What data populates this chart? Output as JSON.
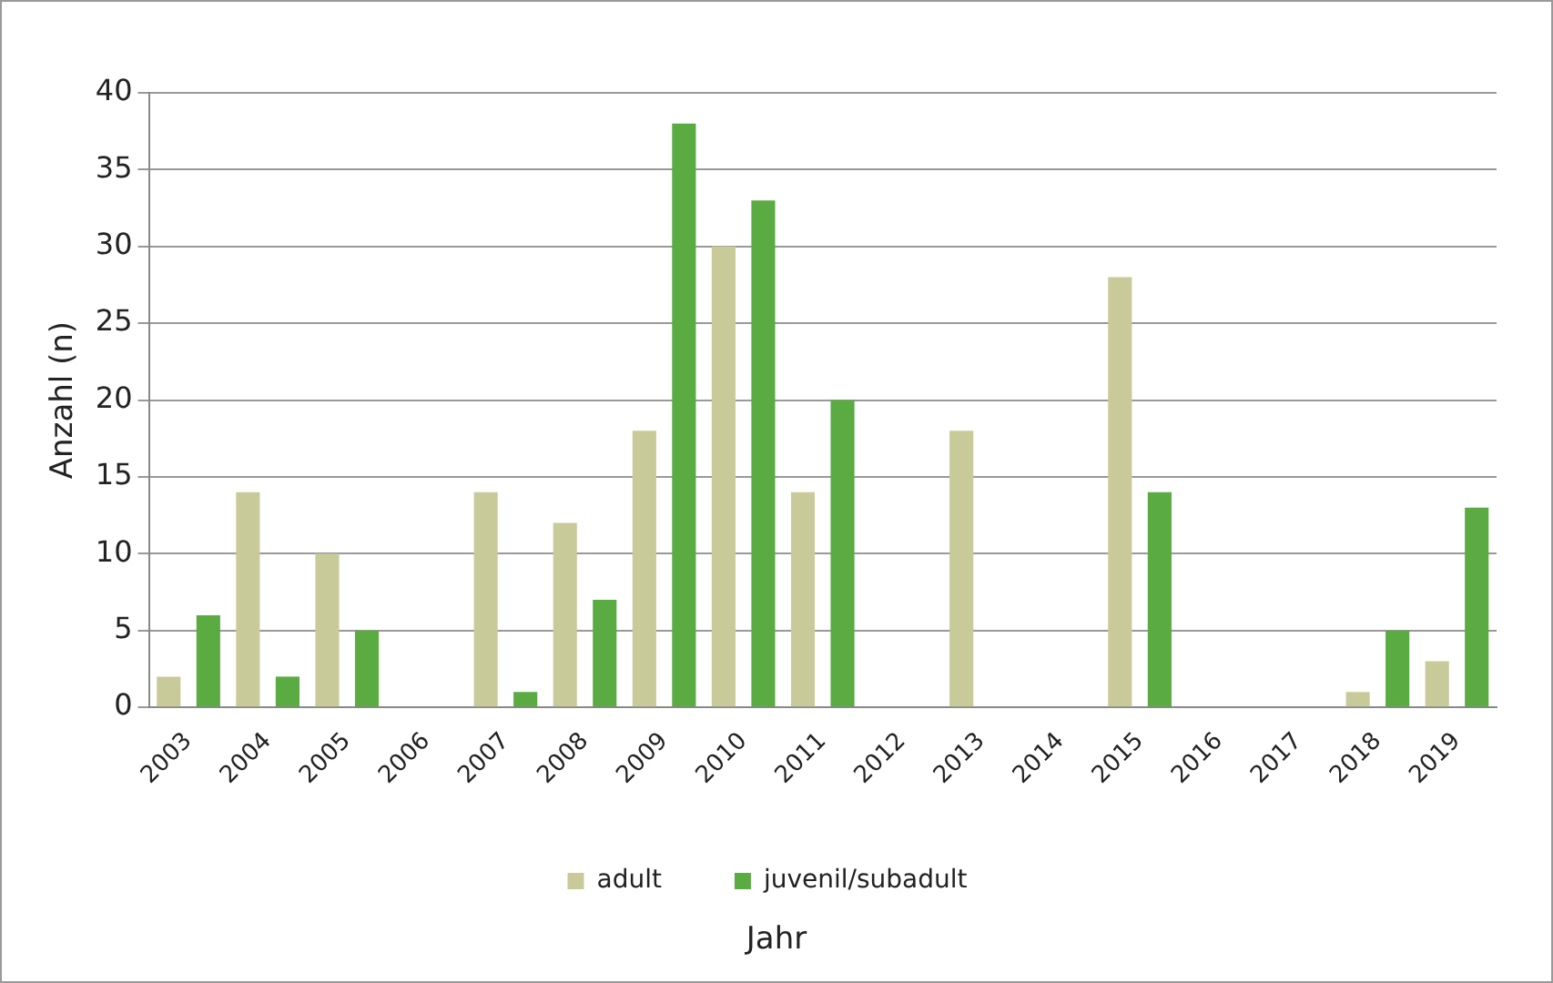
{
  "chart_data": {
    "type": "bar",
    "xlabel": "Jahr",
    "ylabel": "Anzahl (n)",
    "categories": [
      "2003",
      "2004",
      "2005",
      "2006",
      "2007",
      "2008",
      "2009",
      "2010",
      "2011",
      "2012",
      "2013",
      "2014",
      "2015",
      "2016",
      "2017",
      "2018",
      "2019"
    ],
    "series": [
      {
        "name": "adult",
        "color": "#c9ca9a",
        "values": [
          2,
          14,
          10,
          0,
          14,
          12,
          18,
          30,
          14,
          0,
          18,
          0,
          28,
          0,
          0,
          1,
          3
        ]
      },
      {
        "name": "juvenil/subadult",
        "color": "#5aab41",
        "values": [
          6,
          2,
          5,
          0,
          1,
          7,
          38,
          33,
          20,
          0,
          0,
          0,
          14,
          0,
          0,
          5,
          13
        ]
      }
    ],
    "ylim": [
      0,
      40
    ],
    "yticks": [
      0,
      5,
      10,
      15,
      20,
      25,
      30,
      35,
      40
    ],
    "grid": "y",
    "legend": "bottom"
  }
}
